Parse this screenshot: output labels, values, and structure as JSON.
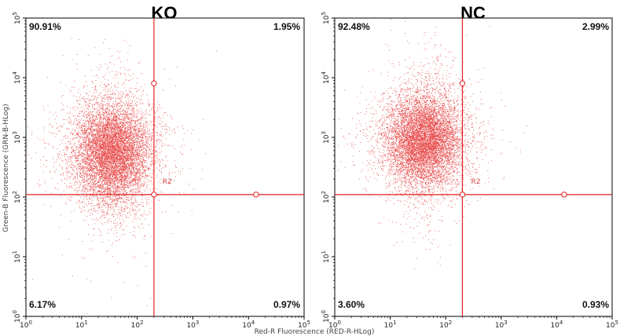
{
  "chart_data": {
    "type": "scatter",
    "xlabel": "Red-R Fluorescence (RED-R-HLog)",
    "ylabel": "Green-B Fluorescence (GRN-B-HLog)",
    "xscale": "log",
    "yscale": "log",
    "xlim": [
      1,
      100000
    ],
    "ylim": [
      1,
      100000
    ],
    "tick_values": [
      1,
      10,
      100,
      1000,
      10000,
      100000
    ],
    "tick_base": "10",
    "tick_exponents": [
      "0",
      "1",
      "2",
      "3",
      "4",
      "5"
    ],
    "grid": false,
    "panels": [
      {
        "title": "KO",
        "gate_label": "R2",
        "gate": {
          "x": 200,
          "y": 110
        },
        "quadrants": {
          "upper_left": "90.91%",
          "upper_right": "1.95%",
          "lower_left": "6.17%",
          "lower_right": "0.97%"
        },
        "cloud": {
          "center_x": 35,
          "center_y": 550,
          "spread_x_decades": 0.33,
          "spread_y_decades": 0.42,
          "n_points": 9000
        },
        "point_color": "#e01414"
      },
      {
        "title": "NC",
        "gate_label": "R2",
        "gate": {
          "x": 200,
          "y": 110
        },
        "quadrants": {
          "upper_left": "92.48%",
          "upper_right": "2.99%",
          "lower_left": "3.60%",
          "lower_right": "0.93%"
        },
        "cloud": {
          "center_x": 40,
          "center_y": 900,
          "spread_x_decades": 0.33,
          "spread_y_decades": 0.4,
          "n_points": 9000
        },
        "point_color": "#e01414"
      }
    ]
  }
}
